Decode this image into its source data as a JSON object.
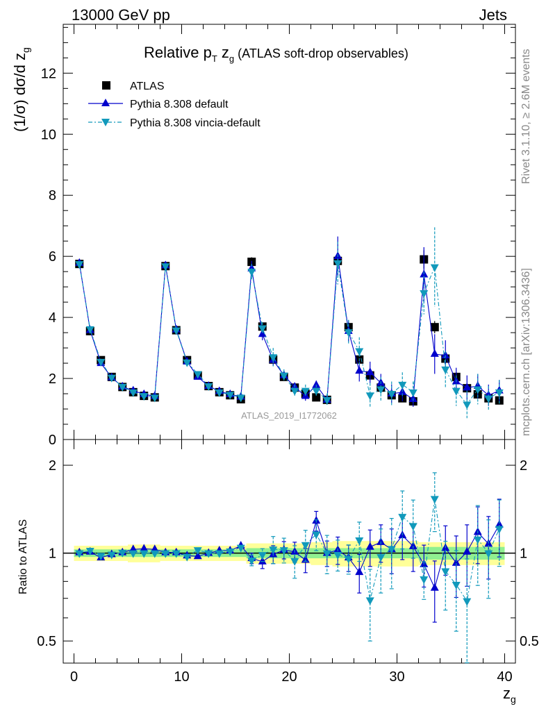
{
  "header": {
    "left": "13000 GeV pp",
    "right": "Jets"
  },
  "title": {
    "main": "Relative p",
    "sub_T": "T",
    "mid": " z",
    "sub_g": "g",
    "tail": " (ATLAS soft-drop observables)"
  },
  "ylabel_top": {
    "pre": "(1/σ) dσ/d z",
    "sub": "g"
  },
  "ylabel_bottom": "Ratio to ATLAS",
  "xlabel": {
    "main": "z",
    "sub": "g"
  },
  "side_text_top": "Rivet 3.1.10, ≥ 2.6M events",
  "side_text_bottom": "mcplots.cern.ch [arXiv:1306.3436]",
  "watermark": "ATLAS_2019_I1772062",
  "legend": [
    {
      "label": "ATLAS"
    },
    {
      "label": "Pythia 8.308 default"
    },
    {
      "label": "Pythia 8.308 vincia-default"
    }
  ],
  "colors": {
    "data": "#000000",
    "default": "#0000cc",
    "vincia": "#1199bb",
    "band_inner": "#90f090",
    "band_outer": "#ffff99"
  },
  "chart_data": {
    "type": "scatter",
    "x_axis": {
      "label": "z_g",
      "range": [
        -1,
        41
      ],
      "ticks": [
        "0",
        "10",
        "20",
        "30",
        "40"
      ]
    },
    "top_panel": {
      "ylabel": "(1/σ) dσ/d z_g",
      "ylim": [
        0,
        13.6
      ],
      "y_ticks": [
        "0",
        "2",
        "4",
        "6",
        "8",
        "10",
        "12"
      ],
      "x": [
        0.5,
        1.5,
        2.5,
        3.5,
        4.5,
        5.5,
        6.5,
        7.5,
        8.5,
        9.5,
        10.5,
        11.5,
        12.5,
        13.5,
        14.5,
        15.5,
        16.5,
        17.5,
        18.5,
        19.5,
        20.5,
        21.5,
        22.5,
        23.5,
        24.5,
        25.5,
        26.5,
        27.5,
        28.5,
        29.5,
        30.5,
        31.5,
        32.5,
        33.5,
        34.5,
        35.5,
        36.5,
        37.5,
        38.5,
        39.5
      ],
      "series": [
        {
          "name": "ATLAS",
          "style": "square",
          "values": [
            5.75,
            3.55,
            2.6,
            2.05,
            1.72,
            1.55,
            1.43,
            1.38,
            5.68,
            3.58,
            2.6,
            2.1,
            1.75,
            1.55,
            1.45,
            1.32,
            5.82,
            3.7,
            2.62,
            2.05,
            1.7,
            1.5,
            1.38,
            1.3,
            5.85,
            3.68,
            2.62,
            2.1,
            1.7,
            1.45,
            1.35,
            1.25,
            5.9,
            3.68,
            2.65,
            2.05,
            1.68,
            1.48,
            1.35,
            1.28
          ],
          "err": [
            0.05,
            0.05,
            0.05,
            0.05,
            0.05,
            0.05,
            0.05,
            0.05,
            0.08,
            0.06,
            0.05,
            0.05,
            0.05,
            0.05,
            0.05,
            0.05,
            0.15,
            0.1,
            0.08,
            0.06,
            0.06,
            0.06,
            0.05,
            0.05,
            0.2,
            0.15,
            0.12,
            0.1,
            0.1,
            0.1,
            0.1,
            0.1,
            0.3,
            0.2,
            0.15,
            0.15,
            0.12,
            0.12,
            0.1,
            0.1
          ]
        },
        {
          "name": "Pythia 8.308 default",
          "style": "triangle-up",
          "values": [
            5.78,
            3.58,
            2.5,
            2.03,
            1.73,
            1.6,
            1.48,
            1.42,
            5.7,
            3.6,
            2.55,
            2.05,
            1.75,
            1.58,
            1.48,
            1.4,
            5.6,
            3.45,
            2.6,
            2.1,
            1.72,
            1.42,
            1.78,
            1.3,
            6.0,
            3.55,
            2.25,
            2.2,
            1.85,
            1.5,
            1.55,
            1.32,
            5.4,
            2.8,
            2.75,
            1.9,
            1.7,
            1.75,
            1.45,
            1.6
          ],
          "err": [
            0.05,
            0.05,
            0.05,
            0.05,
            0.05,
            0.05,
            0.05,
            0.05,
            0.08,
            0.06,
            0.05,
            0.05,
            0.05,
            0.05,
            0.05,
            0.05,
            0.25,
            0.2,
            0.2,
            0.15,
            0.15,
            0.15,
            0.15,
            0.15,
            0.65,
            0.35,
            0.35,
            0.35,
            0.3,
            0.3,
            0.3,
            0.25,
            0.9,
            0.65,
            0.5,
            0.45,
            0.4,
            0.4,
            0.35,
            0.35
          ]
        },
        {
          "name": "Pythia 8.308 vincia-default",
          "style": "triangle-down",
          "values": [
            5.75,
            3.62,
            2.55,
            2.03,
            1.73,
            1.55,
            1.43,
            1.38,
            5.68,
            3.58,
            2.53,
            2.15,
            1.75,
            1.55,
            1.47,
            1.38,
            5.5,
            3.65,
            2.7,
            2.1,
            1.6,
            1.6,
            1.6,
            1.3,
            5.78,
            3.52,
            2.9,
            1.45,
            1.65,
            1.5,
            1.8,
            1.55,
            4.8,
            5.65,
            2.3,
            1.6,
            1.15,
            1.65,
            1.35,
            1.55
          ],
          "err": [
            0.05,
            0.05,
            0.05,
            0.05,
            0.05,
            0.05,
            0.05,
            0.05,
            0.08,
            0.06,
            0.05,
            0.05,
            0.05,
            0.05,
            0.05,
            0.05,
            0.25,
            0.2,
            0.3,
            0.2,
            0.2,
            0.2,
            0.2,
            0.2,
            0.7,
            0.4,
            0.45,
            0.4,
            0.4,
            0.4,
            0.4,
            0.35,
            0.7,
            1.3,
            0.6,
            0.5,
            0.45,
            0.5,
            0.4,
            0.4
          ]
        }
      ]
    },
    "bottom_panel": {
      "ylabel": "Ratio to ATLAS",
      "ylim": [
        0.42,
        2.45
      ],
      "log_scale": true,
      "y_ticks": [
        "0.5",
        "1",
        "2"
      ],
      "band_inner_halfwidth": [
        0.03,
        0.03,
        0.03,
        0.03,
        0.03,
        0.03,
        0.03,
        0.03,
        0.03,
        0.03,
        0.03,
        0.03,
        0.03,
        0.03,
        0.03,
        0.03,
        0.04,
        0.04,
        0.04,
        0.04,
        0.04,
        0.04,
        0.04,
        0.04,
        0.04,
        0.04,
        0.04,
        0.04,
        0.04,
        0.04,
        0.04,
        0.04,
        0.05,
        0.05,
        0.05,
        0.05,
        0.05,
        0.05,
        0.05,
        0.05
      ],
      "band_outer_halfwidth": [
        0.06,
        0.06,
        0.06,
        0.06,
        0.06,
        0.07,
        0.07,
        0.07,
        0.06,
        0.06,
        0.06,
        0.06,
        0.06,
        0.06,
        0.06,
        0.06,
        0.08,
        0.08,
        0.08,
        0.08,
        0.08,
        0.08,
        0.09,
        0.09,
        0.1,
        0.1,
        0.1,
        0.1,
        0.1,
        0.1,
        0.1,
        0.1,
        0.09,
        0.09,
        0.09,
        0.09,
        0.09,
        0.09,
        0.09,
        0.09
      ],
      "series": [
        {
          "name": "Pythia 8.308 default",
          "style": "triangle-up",
          "values": [
            1.005,
            1.01,
            0.965,
            0.99,
            1.005,
            1.03,
            1.035,
            1.03,
            1.005,
            1.005,
            0.98,
            0.975,
            1.0,
            1.02,
            1.02,
            1.06,
            0.96,
            0.935,
            0.99,
            1.025,
            1.01,
            0.947,
            1.29,
            1.0,
            1.025,
            0.965,
            0.86,
            1.05,
            1.09,
            1.03,
            1.15,
            1.055,
            0.915,
            0.76,
            1.04,
            0.925,
            1.01,
            1.18,
            1.075,
            1.25
          ],
          "err": [
            0.01,
            0.01,
            0.01,
            0.01,
            0.01,
            0.01,
            0.01,
            0.01,
            0.01,
            0.01,
            0.01,
            0.01,
            0.01,
            0.01,
            0.01,
            0.02,
            0.04,
            0.05,
            0.07,
            0.07,
            0.08,
            0.09,
            0.1,
            0.1,
            0.11,
            0.1,
            0.13,
            0.15,
            0.16,
            0.18,
            0.2,
            0.19,
            0.15,
            0.18,
            0.2,
            0.22,
            0.24,
            0.26,
            0.26,
            0.28
          ]
        },
        {
          "name": "Pythia 8.308 vincia-default",
          "style": "triangle-down",
          "values": [
            1.0,
            1.02,
            0.98,
            0.99,
            1.005,
            1.0,
            1.0,
            1.0,
            1.0,
            1.0,
            0.973,
            1.025,
            1.0,
            1.0,
            1.015,
            1.045,
            0.945,
            0.986,
            1.03,
            1.025,
            0.94,
            1.067,
            1.16,
            1.0,
            0.988,
            0.957,
            1.107,
            0.69,
            0.97,
            1.035,
            1.333,
            1.24,
            0.814,
            1.535,
            0.868,
            0.78,
            0.685,
            1.115,
            1.0,
            1.211
          ],
          "err": [
            0.01,
            0.01,
            0.01,
            0.01,
            0.01,
            0.01,
            0.01,
            0.01,
            0.01,
            0.01,
            0.01,
            0.01,
            0.01,
            0.01,
            0.01,
            0.02,
            0.04,
            0.05,
            0.11,
            0.1,
            0.12,
            0.13,
            0.14,
            0.15,
            0.12,
            0.11,
            0.17,
            0.19,
            0.24,
            0.28,
            0.3,
            0.28,
            0.12,
            0.35,
            0.23,
            0.24,
            0.27,
            0.34,
            0.3,
            0.31
          ]
        }
      ]
    }
  }
}
